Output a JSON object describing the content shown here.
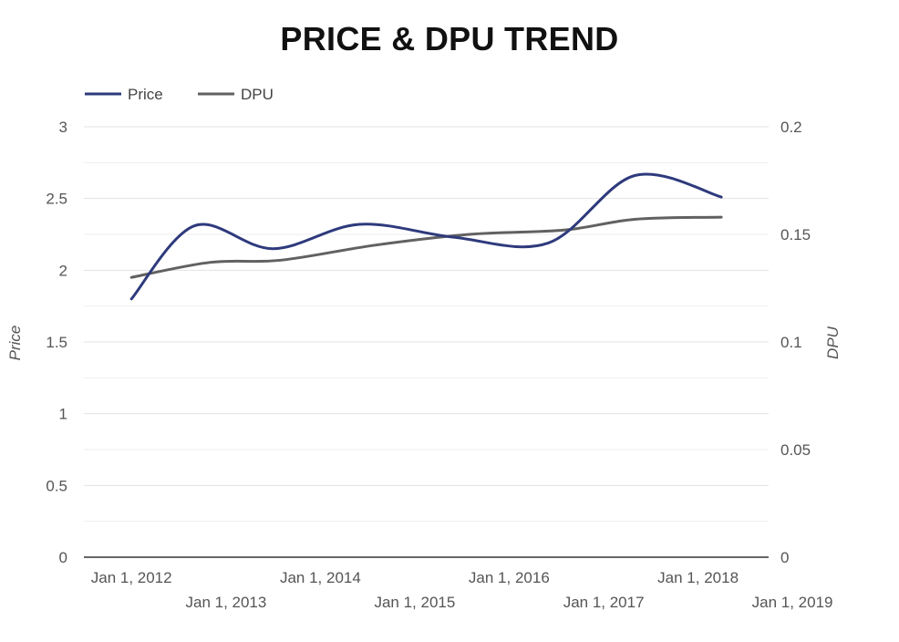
{
  "chart_data": {
    "type": "line",
    "title": "PRICE & DPU TREND",
    "x": [
      "2012-01-01",
      "2013-01-01",
      "2014-01-01",
      "2015-01-01",
      "2016-01-01",
      "2017-01-01",
      "2018-01-01",
      "2019-01-01"
    ],
    "x_tick_labels": [
      "Jan 1, 2012",
      "Jan 1, 2013",
      "Jan 1, 2014",
      "Jan 1, 2015",
      "Jan 1, 2016",
      "Jan 1, 2017",
      "Jan 1, 2018",
      "Jan 1, 2019"
    ],
    "series": [
      {
        "name": "Price",
        "axis": "left",
        "color": "#2e3a7c",
        "points": [
          [
            "2012-01-01",
            1.8
          ],
          [
            "2012-09-01",
            2.31
          ],
          [
            "2013-07-01",
            2.15
          ],
          [
            "2014-06-01",
            2.32
          ],
          [
            "2015-06-01",
            2.23
          ],
          [
            "2016-06-01",
            2.19
          ],
          [
            "2017-05-01",
            2.66
          ],
          [
            "2018-04-01",
            2.51
          ]
        ]
      },
      {
        "name": "DPU",
        "axis": "right",
        "color": "#616161",
        "points": [
          [
            "2012-01-01",
            0.13
          ],
          [
            "2012-11-01",
            0.137
          ],
          [
            "2013-08-01",
            0.138
          ],
          [
            "2014-08-01",
            0.145
          ],
          [
            "2015-08-01",
            0.15
          ],
          [
            "2016-08-01",
            0.152
          ],
          [
            "2017-05-01",
            0.157
          ],
          [
            "2018-04-01",
            0.158
          ]
        ]
      }
    ],
    "y_left": {
      "label": "Price",
      "ticks": [
        "0",
        "0.5",
        "1",
        "1.5",
        "2",
        "2.5",
        "3"
      ],
      "range": [
        0,
        3
      ]
    },
    "y_right": {
      "label": "DPU",
      "ticks": [
        "0",
        "0.05",
        "0.1",
        "0.15",
        "0.2"
      ],
      "range": [
        0,
        0.2
      ]
    },
    "xlim": [
      "2011-07-01",
      "2018-10-01"
    ],
    "grid": true,
    "legend": {
      "placement": "top-left",
      "items": [
        "Price",
        "DPU"
      ]
    }
  }
}
